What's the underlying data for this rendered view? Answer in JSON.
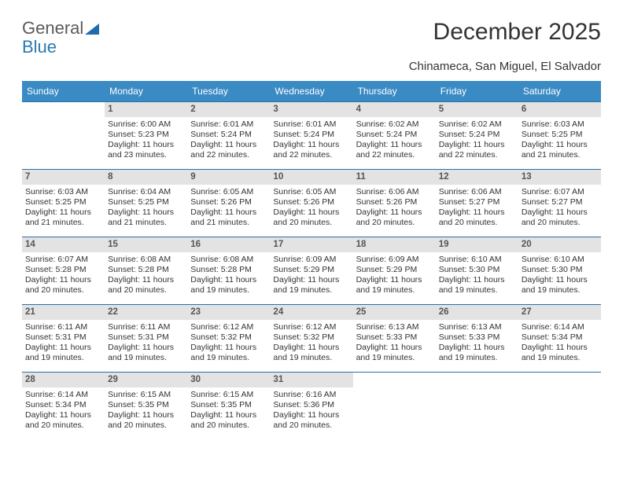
{
  "brand": {
    "line1": "General",
    "line2": "Blue"
  },
  "title": "December 2025",
  "subtitle": "Chinameca, San Miguel, El Salvador",
  "colors": {
    "header_bg": "#3a8ac4",
    "header_text": "#ffffff",
    "row_border": "#2a6fa8",
    "daynum_bg": "#e3e3e3",
    "text": "#333333",
    "brand_blue": "#2a7ab0"
  },
  "weekdays": [
    "Sunday",
    "Monday",
    "Tuesday",
    "Wednesday",
    "Thursday",
    "Friday",
    "Saturday"
  ],
  "first_weekday_index": 1,
  "days": {
    "1": {
      "sunrise": "6:00 AM",
      "sunset": "5:23 PM",
      "daylight": "11 hours and 23 minutes."
    },
    "2": {
      "sunrise": "6:01 AM",
      "sunset": "5:24 PM",
      "daylight": "11 hours and 22 minutes."
    },
    "3": {
      "sunrise": "6:01 AM",
      "sunset": "5:24 PM",
      "daylight": "11 hours and 22 minutes."
    },
    "4": {
      "sunrise": "6:02 AM",
      "sunset": "5:24 PM",
      "daylight": "11 hours and 22 minutes."
    },
    "5": {
      "sunrise": "6:02 AM",
      "sunset": "5:24 PM",
      "daylight": "11 hours and 22 minutes."
    },
    "6": {
      "sunrise": "6:03 AM",
      "sunset": "5:25 PM",
      "daylight": "11 hours and 21 minutes."
    },
    "7": {
      "sunrise": "6:03 AM",
      "sunset": "5:25 PM",
      "daylight": "11 hours and 21 minutes."
    },
    "8": {
      "sunrise": "6:04 AM",
      "sunset": "5:25 PM",
      "daylight": "11 hours and 21 minutes."
    },
    "9": {
      "sunrise": "6:05 AM",
      "sunset": "5:26 PM",
      "daylight": "11 hours and 21 minutes."
    },
    "10": {
      "sunrise": "6:05 AM",
      "sunset": "5:26 PM",
      "daylight": "11 hours and 20 minutes."
    },
    "11": {
      "sunrise": "6:06 AM",
      "sunset": "5:26 PM",
      "daylight": "11 hours and 20 minutes."
    },
    "12": {
      "sunrise": "6:06 AM",
      "sunset": "5:27 PM",
      "daylight": "11 hours and 20 minutes."
    },
    "13": {
      "sunrise": "6:07 AM",
      "sunset": "5:27 PM",
      "daylight": "11 hours and 20 minutes."
    },
    "14": {
      "sunrise": "6:07 AM",
      "sunset": "5:28 PM",
      "daylight": "11 hours and 20 minutes."
    },
    "15": {
      "sunrise": "6:08 AM",
      "sunset": "5:28 PM",
      "daylight": "11 hours and 20 minutes."
    },
    "16": {
      "sunrise": "6:08 AM",
      "sunset": "5:28 PM",
      "daylight": "11 hours and 19 minutes."
    },
    "17": {
      "sunrise": "6:09 AM",
      "sunset": "5:29 PM",
      "daylight": "11 hours and 19 minutes."
    },
    "18": {
      "sunrise": "6:09 AM",
      "sunset": "5:29 PM",
      "daylight": "11 hours and 19 minutes."
    },
    "19": {
      "sunrise": "6:10 AM",
      "sunset": "5:30 PM",
      "daylight": "11 hours and 19 minutes."
    },
    "20": {
      "sunrise": "6:10 AM",
      "sunset": "5:30 PM",
      "daylight": "11 hours and 19 minutes."
    },
    "21": {
      "sunrise": "6:11 AM",
      "sunset": "5:31 PM",
      "daylight": "11 hours and 19 minutes."
    },
    "22": {
      "sunrise": "6:11 AM",
      "sunset": "5:31 PM",
      "daylight": "11 hours and 19 minutes."
    },
    "23": {
      "sunrise": "6:12 AM",
      "sunset": "5:32 PM",
      "daylight": "11 hours and 19 minutes."
    },
    "24": {
      "sunrise": "6:12 AM",
      "sunset": "5:32 PM",
      "daylight": "11 hours and 19 minutes."
    },
    "25": {
      "sunrise": "6:13 AM",
      "sunset": "5:33 PM",
      "daylight": "11 hours and 19 minutes."
    },
    "26": {
      "sunrise": "6:13 AM",
      "sunset": "5:33 PM",
      "daylight": "11 hours and 19 minutes."
    },
    "27": {
      "sunrise": "6:14 AM",
      "sunset": "5:34 PM",
      "daylight": "11 hours and 19 minutes."
    },
    "28": {
      "sunrise": "6:14 AM",
      "sunset": "5:34 PM",
      "daylight": "11 hours and 20 minutes."
    },
    "29": {
      "sunrise": "6:15 AM",
      "sunset": "5:35 PM",
      "daylight": "11 hours and 20 minutes."
    },
    "30": {
      "sunrise": "6:15 AM",
      "sunset": "5:35 PM",
      "daylight": "11 hours and 20 minutes."
    },
    "31": {
      "sunrise": "6:16 AM",
      "sunset": "5:36 PM",
      "daylight": "11 hours and 20 minutes."
    }
  },
  "labels": {
    "sunrise": "Sunrise:",
    "sunset": "Sunset:",
    "daylight": "Daylight:"
  },
  "num_days": 31
}
